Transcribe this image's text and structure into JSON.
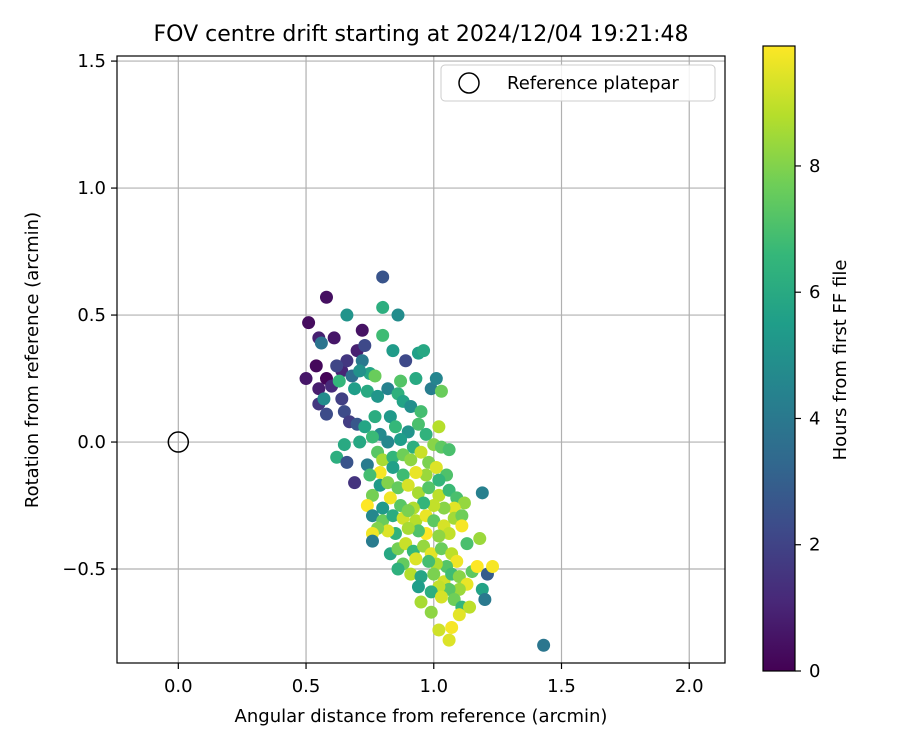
{
  "chart_data": {
    "type": "scatter",
    "title": "FOV centre drift starting at 2024/12/04 19:21:48",
    "xlabel": "Angular distance from reference (arcmin)",
    "ylabel": "Rotation from reference (arcmin)",
    "xlim": [
      -0.24,
      2.14
    ],
    "ylim": [
      -0.87,
      1.52
    ],
    "xticks": [
      0.0,
      0.5,
      1.0,
      1.5,
      2.0
    ],
    "xtick_labels": [
      "0.0",
      "0.5",
      "1.0",
      "1.5",
      "2.0"
    ],
    "yticks": [
      -0.5,
      0.0,
      0.5,
      1.0,
      1.5
    ],
    "ytick_labels": [
      "−0.5",
      "0.0",
      "0.5",
      "1.0",
      "1.5"
    ],
    "grid": true,
    "legend": {
      "position": "top-right",
      "entries": [
        "Reference platepar"
      ]
    },
    "reference_point": {
      "name": "Reference platepar",
      "x": 0.0,
      "y": 0.0
    },
    "colorbar": {
      "label": "Hours from first FF file",
      "colormap": "viridis",
      "range": [
        0,
        9.9
      ],
      "ticks": [
        0,
        2,
        4,
        6,
        8
      ],
      "tick_labels": [
        "0",
        "2",
        "4",
        "6",
        "8"
      ]
    },
    "series": [
      {
        "points": [
          [
            0.58,
            0.57,
            0.4
          ],
          [
            0.51,
            0.47,
            0.3
          ],
          [
            0.55,
            0.41,
            0.9
          ],
          [
            0.61,
            0.41,
            0.6
          ],
          [
            0.56,
            0.39,
            3.8
          ],
          [
            0.72,
            0.44,
            0.5
          ],
          [
            0.54,
            0.3,
            0.2
          ],
          [
            0.5,
            0.25,
            0.6
          ],
          [
            0.58,
            0.25,
            0.1
          ],
          [
            0.55,
            0.21,
            0.8
          ],
          [
            0.6,
            0.22,
            1.2
          ],
          [
            0.64,
            0.28,
            1.0
          ],
          [
            0.66,
            0.32,
            1.6
          ],
          [
            0.62,
            0.3,
            2.1
          ],
          [
            0.7,
            0.36,
            0.9
          ],
          [
            0.73,
            0.38,
            2.2
          ],
          [
            0.55,
            0.15,
            1.6
          ],
          [
            0.57,
            0.17,
            4.8
          ],
          [
            0.58,
            0.11,
            2.3
          ],
          [
            0.65,
            0.12,
            2.3
          ],
          [
            0.67,
            0.08,
            1.8
          ],
          [
            0.7,
            0.07,
            2.7
          ],
          [
            0.64,
            0.17,
            1.9
          ],
          [
            0.68,
            0.26,
            3.5
          ],
          [
            0.75,
            0.27,
            5.8
          ],
          [
            0.77,
            0.26,
            7.6
          ],
          [
            0.66,
            0.5,
            5.1
          ],
          [
            0.8,
            0.65,
            2.6
          ],
          [
            0.8,
            0.53,
            6.2
          ],
          [
            0.86,
            0.5,
            4.8
          ],
          [
            0.8,
            0.42,
            6.8
          ],
          [
            0.84,
            0.36,
            5.4
          ],
          [
            0.89,
            0.32,
            2.2
          ],
          [
            0.94,
            0.35,
            5.6
          ],
          [
            0.96,
            0.36,
            5.9
          ],
          [
            0.72,
            0.32,
            4.0
          ],
          [
            0.71,
            0.28,
            5.0
          ],
          [
            0.63,
            0.24,
            6.5
          ],
          [
            0.69,
            0.21,
            5.5
          ],
          [
            0.74,
            0.2,
            6.0
          ],
          [
            0.78,
            0.18,
            5.2
          ],
          [
            0.82,
            0.21,
            4.4
          ],
          [
            0.86,
            0.19,
            6.3
          ],
          [
            0.88,
            0.16,
            5.7
          ],
          [
            0.91,
            0.14,
            4.9
          ],
          [
            0.95,
            0.12,
            6.9
          ],
          [
            0.99,
            0.21,
            4.2
          ],
          [
            1.03,
            0.2,
            7.6
          ],
          [
            1.01,
            0.25,
            4.5
          ],
          [
            0.93,
            0.25,
            6.0
          ],
          [
            0.87,
            0.24,
            7.2
          ],
          [
            0.83,
            0.1,
            5.3
          ],
          [
            0.77,
            0.1,
            6.1
          ],
          [
            0.73,
            0.06,
            5.8
          ],
          [
            0.79,
            0.03,
            4.7
          ],
          [
            0.85,
            0.06,
            6.6
          ],
          [
            0.9,
            0.04,
            5.1
          ],
          [
            0.94,
            0.07,
            7.0
          ],
          [
            0.97,
            0.03,
            6.4
          ],
          [
            1.02,
            0.06,
            8.8
          ],
          [
            1.0,
            -0.01,
            8.1
          ],
          [
            1.03,
            -0.02,
            7.4
          ],
          [
            1.06,
            -0.03,
            7.0
          ],
          [
            0.92,
            -0.02,
            6.2
          ],
          [
            0.87,
            0.01,
            5.5
          ],
          [
            0.82,
            0.0,
            4.6
          ],
          [
            0.76,
            0.02,
            6.7
          ],
          [
            0.71,
            0.0,
            5.9
          ],
          [
            0.65,
            -0.01,
            6.0
          ],
          [
            0.62,
            -0.06,
            6.2
          ],
          [
            0.66,
            -0.08,
            2.6
          ],
          [
            0.69,
            -0.16,
            1.5
          ],
          [
            0.74,
            -0.09,
            4.1
          ],
          [
            0.78,
            -0.04,
            7.3
          ],
          [
            0.8,
            -0.07,
            8.6
          ],
          [
            0.84,
            -0.06,
            6.5
          ],
          [
            0.88,
            -0.05,
            7.7
          ],
          [
            0.91,
            -0.07,
            8.2
          ],
          [
            0.95,
            -0.04,
            9.1
          ],
          [
            0.98,
            -0.08,
            7.9
          ],
          [
            1.01,
            -0.1,
            9.4
          ],
          [
            1.05,
            -0.13,
            7.1
          ],
          [
            1.02,
            -0.15,
            6.5
          ],
          [
            0.97,
            -0.13,
            8.4
          ],
          [
            0.93,
            -0.12,
            9.6
          ],
          [
            0.88,
            -0.13,
            6.8
          ],
          [
            0.84,
            -0.1,
            5.6
          ],
          [
            0.79,
            -0.12,
            9.8
          ],
          [
            0.75,
            -0.13,
            6.9
          ],
          [
            0.76,
            -0.21,
            7.8
          ],
          [
            0.79,
            -0.17,
            5.4
          ],
          [
            0.82,
            -0.16,
            8.0
          ],
          [
            0.86,
            -0.18,
            7.5
          ],
          [
            0.9,
            -0.17,
            9.3
          ],
          [
            0.94,
            -0.2,
            8.6
          ],
          [
            0.98,
            -0.18,
            7.2
          ],
          [
            1.02,
            -0.21,
            8.9
          ],
          [
            1.06,
            -0.19,
            6.7
          ],
          [
            1.09,
            -0.22,
            7.0
          ],
          [
            1.12,
            -0.24,
            8.3
          ],
          [
            1.19,
            -0.2,
            4.3
          ],
          [
            1.08,
            -0.26,
            9.5
          ],
          [
            1.04,
            -0.26,
            8.1
          ],
          [
            1.0,
            -0.25,
            9.0
          ],
          [
            0.96,
            -0.24,
            6.5
          ],
          [
            0.92,
            -0.26,
            8.7
          ],
          [
            0.87,
            -0.25,
            7.3
          ],
          [
            0.83,
            -0.22,
            9.7
          ],
          [
            0.8,
            -0.26,
            5.3
          ],
          [
            0.74,
            -0.25,
            9.9
          ],
          [
            0.76,
            -0.29,
            4.6
          ],
          [
            0.8,
            -0.31,
            7.6
          ],
          [
            0.84,
            -0.29,
            6.1
          ],
          [
            0.88,
            -0.3,
            9.2
          ],
          [
            0.9,
            -0.27,
            7.9
          ],
          [
            0.93,
            -0.31,
            8.8
          ],
          [
            0.97,
            -0.29,
            9.6
          ],
          [
            1.0,
            -0.31,
            7.4
          ],
          [
            1.04,
            -0.33,
            9.3
          ],
          [
            1.08,
            -0.3,
            8.5
          ],
          [
            1.11,
            -0.29,
            7.7
          ],
          [
            1.11,
            -0.33,
            9.8
          ],
          [
            1.13,
            -0.4,
            7.0
          ],
          [
            1.18,
            -0.38,
            8.4
          ],
          [
            1.06,
            -0.36,
            9.0
          ],
          [
            1.02,
            -0.37,
            8.2
          ],
          [
            0.97,
            -0.36,
            9.9
          ],
          [
            0.94,
            -0.35,
            7.1
          ],
          [
            0.9,
            -0.34,
            8.6
          ],
          [
            0.85,
            -0.36,
            6.4
          ],
          [
            0.82,
            -0.35,
            9.4
          ],
          [
            0.78,
            -0.34,
            8.0
          ],
          [
            0.76,
            -0.36,
            9.7
          ],
          [
            0.76,
            -0.39,
            4.1
          ],
          [
            0.83,
            -0.44,
            5.9
          ],
          [
            0.86,
            -0.42,
            7.8
          ],
          [
            0.89,
            -0.4,
            9.1
          ],
          [
            0.92,
            -0.43,
            6.6
          ],
          [
            0.96,
            -0.41,
            8.3
          ],
          [
            0.99,
            -0.44,
            9.5
          ],
          [
            1.03,
            -0.42,
            7.6
          ],
          [
            1.07,
            -0.44,
            8.9
          ],
          [
            1.09,
            -0.47,
            9.7
          ],
          [
            1.05,
            -0.49,
            7.2
          ],
          [
            1.01,
            -0.48,
            8.7
          ],
          [
            0.98,
            -0.47,
            6.9
          ],
          [
            0.93,
            -0.46,
            9.4
          ],
          [
            0.88,
            -0.48,
            7.5
          ],
          [
            0.86,
            -0.5,
            6.3
          ],
          [
            0.91,
            -0.52,
            8.8
          ],
          [
            0.95,
            -0.53,
            5.8
          ],
          [
            1.0,
            -0.52,
            7.9
          ],
          [
            1.04,
            -0.55,
            9.2
          ],
          [
            1.07,
            -0.52,
            6.8
          ],
          [
            1.1,
            -0.53,
            8.1
          ],
          [
            1.13,
            -0.56,
            9.6
          ],
          [
            1.15,
            -0.51,
            7.4
          ],
          [
            1.17,
            -0.49,
            9.9
          ],
          [
            1.21,
            -0.52,
            2.9
          ],
          [
            1.23,
            -0.49,
            9.8
          ],
          [
            1.19,
            -0.58,
            5.7
          ],
          [
            1.1,
            -0.58,
            8.4
          ],
          [
            1.06,
            -0.58,
            7.3
          ],
          [
            1.02,
            -0.57,
            9.0
          ],
          [
            0.99,
            -0.59,
            6.2
          ],
          [
            0.94,
            -0.57,
            5.5
          ],
          [
            0.95,
            -0.63,
            8.6
          ],
          [
            0.99,
            -0.67,
            8.2
          ],
          [
            1.03,
            -0.61,
            9.3
          ],
          [
            1.08,
            -0.62,
            7.7
          ],
          [
            1.11,
            -0.65,
            6.5
          ],
          [
            1.14,
            -0.65,
            8.9
          ],
          [
            1.2,
            -0.62,
            4.0
          ],
          [
            1.1,
            -0.68,
            9.5
          ],
          [
            1.02,
            -0.74,
            9.2
          ],
          [
            1.07,
            -0.73,
            9.8
          ],
          [
            1.06,
            -0.78,
            9.4
          ],
          [
            1.43,
            -0.8,
            3.9
          ]
        ]
      }
    ]
  }
}
